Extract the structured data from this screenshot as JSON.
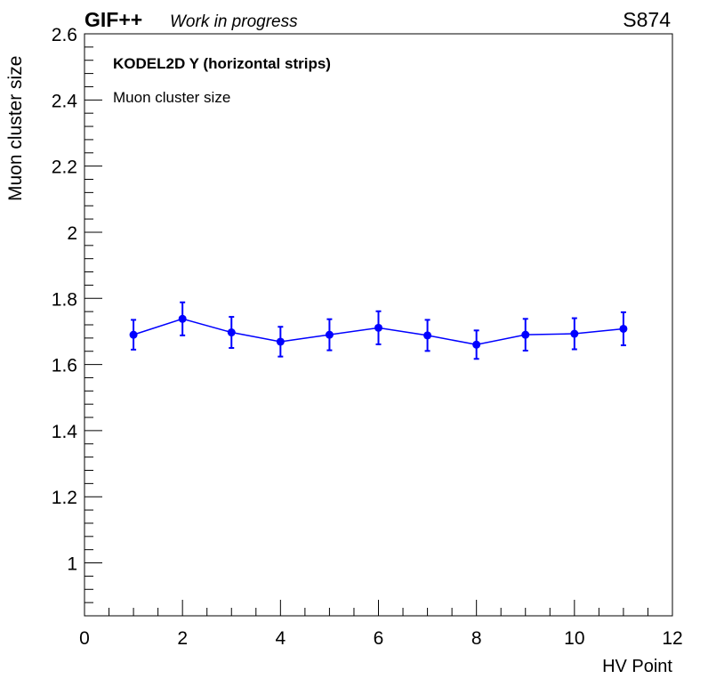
{
  "header": {
    "experiment": "GIF++",
    "status": "Work in progress",
    "run_id": "S874"
  },
  "chart_data": {
    "type": "scatter",
    "title": "KODEL2D Y (horizontal strips)",
    "subtitle": "Muon cluster size",
    "xlabel": "HV Point",
    "ylabel": "Muon cluster size",
    "xlim": [
      0,
      12
    ],
    "ylim": [
      0.84,
      2.6
    ],
    "x_ticks": [
      "0",
      "2",
      "4",
      "6",
      "8",
      "10",
      "12"
    ],
    "y_ticks": [
      "1",
      "1.2",
      "1.4",
      "1.6",
      "1.8",
      "2",
      "2.2",
      "2.4",
      "2.6"
    ],
    "grid": false,
    "color": "#0000ff",
    "series": [
      {
        "x": [
          1,
          2,
          3,
          4,
          5,
          6,
          7,
          8,
          9,
          10,
          11
        ],
        "y": [
          1.69,
          1.738,
          1.697,
          1.669,
          1.69,
          1.711,
          1.688,
          1.66,
          1.69,
          1.693,
          1.708
        ],
        "yerr": [
          0.045,
          0.05,
          0.047,
          0.045,
          0.047,
          0.05,
          0.047,
          0.043,
          0.048,
          0.047,
          0.05
        ]
      }
    ]
  }
}
